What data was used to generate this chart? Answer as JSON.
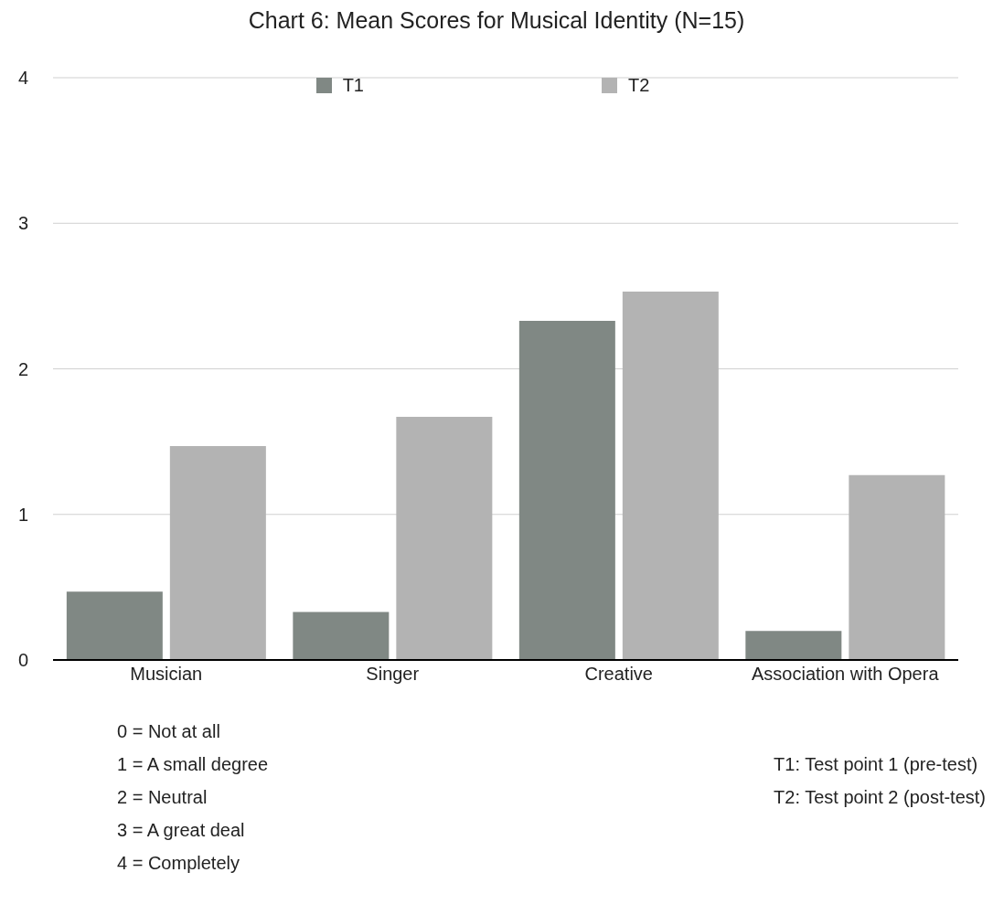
{
  "chart_data": {
    "type": "bar",
    "title": "Chart 6: Mean Scores for Musical Identity (N=15)",
    "categories": [
      "Musician",
      "Singer",
      "Creative",
      "Association with Opera"
    ],
    "series": [
      {
        "name": "T1",
        "color": "#808884",
        "values": [
          0.47,
          0.33,
          2.33,
          0.2
        ]
      },
      {
        "name": "T2",
        "color": "#b3b3b3",
        "values": [
          1.47,
          1.67,
          2.53,
          1.27
        ]
      }
    ],
    "ylim": [
      0,
      4
    ],
    "yticks": [
      0,
      1,
      2,
      3,
      4
    ],
    "grid": "y",
    "legend": "top",
    "annotations": [
      "0 = Not at all",
      "1 = A small degree",
      "2 = Neutral",
      "3 = A great deal",
      "4 = Completely",
      "T1: Test point 1 (pre-test)",
      "T2: Test point 2 (post-test)"
    ]
  }
}
